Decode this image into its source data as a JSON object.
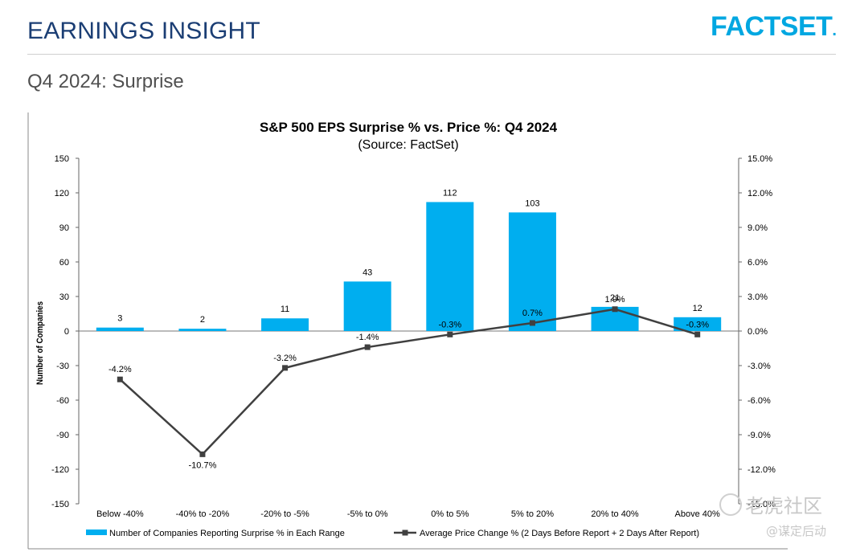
{
  "header": {
    "title": "EARNINGS INSIGHT",
    "logo_text": "FACTSET",
    "logo_dot": ".",
    "subtitle": "Q4 2024: Surprise"
  },
  "colors": {
    "bar": "#00aeef",
    "line": "#404040",
    "title": "#1b3e74",
    "logo": "#00a7e1"
  },
  "chart_data": {
    "type": "bar+line",
    "title": "S&P 500 EPS Surprise % vs. Price %: Q4 2024",
    "subtitle": "(Source: FactSet)",
    "ylabel_left": "Number of Companies",
    "categories": [
      "Below -40%",
      "-40% to -20%",
      "-20% to -5%",
      "-5% to 0%",
      "0% to 5%",
      "5% to 20%",
      "20% to 40%",
      "Above 40%"
    ],
    "left_axis": {
      "min": -150,
      "max": 150,
      "ticks": [
        "150",
        "120",
        "90",
        "60",
        "30",
        "0",
        "-30",
        "-60",
        "-90",
        "-120",
        "-150"
      ]
    },
    "right_axis": {
      "min": -15,
      "max": 15,
      "ticks": [
        "15.0%",
        "12.0%",
        "9.0%",
        "6.0%",
        "3.0%",
        "0.0%",
        "-3.0%",
        "-6.0%",
        "-9.0%",
        "-12.0%",
        "-15.0%"
      ]
    },
    "series": [
      {
        "name": "Number of Companies Reporting Surprise % in Each Range",
        "type": "bar",
        "axis": "left",
        "values": [
          3,
          2,
          11,
          43,
          112,
          103,
          21,
          12
        ],
        "labels": [
          "3",
          "2",
          "11",
          "43",
          "112",
          "103",
          "21",
          "12"
        ]
      },
      {
        "name": "Average Price Change % (2 Days Before Report + 2 Days After Report)",
        "type": "line",
        "axis": "right",
        "values": [
          -4.2,
          -10.7,
          -3.2,
          -1.4,
          -0.3,
          0.7,
          1.9,
          -0.3
        ],
        "labels": [
          "-4.2%",
          "-10.7%",
          "-3.2%",
          "-1.4%",
          "-0.3%",
          "0.7%",
          "1.9%",
          "-0.3%"
        ]
      }
    ],
    "grid": false,
    "legend": "bottom"
  },
  "watermark": {
    "line1": "老虎社区",
    "line2": "@谋定后动"
  }
}
